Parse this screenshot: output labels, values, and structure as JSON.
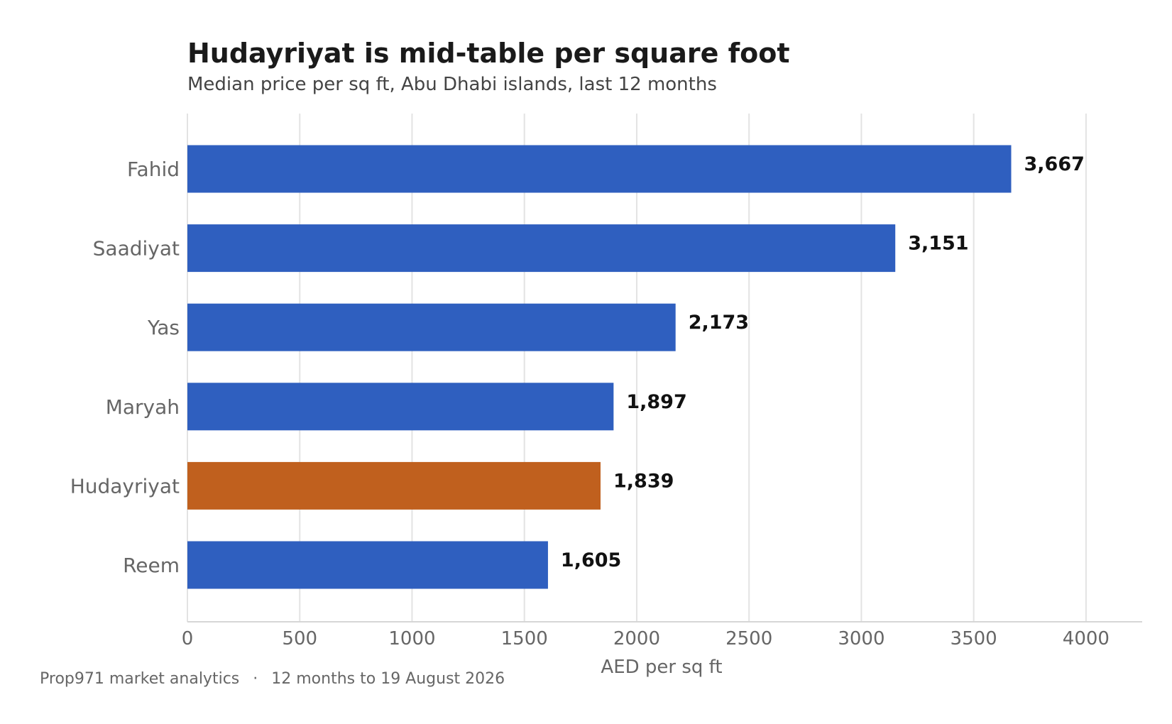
{
  "chart_data": {
    "type": "bar",
    "orientation": "horizontal",
    "title": "Hudayriyat is mid-table per square foot",
    "subtitle": "Median price per sq ft, Abu Dhabi islands, last 12 months",
    "xlabel": "AED per sq ft",
    "ylabel": "",
    "categories": [
      "Fahid",
      "Saadiyat",
      "Yas",
      "Maryah",
      "Hudayriyat",
      "Reem"
    ],
    "values": [
      3667,
      3151,
      2173,
      1897,
      1839,
      1605
    ],
    "value_labels": [
      "3,667",
      "3,151",
      "2,173",
      "1,897",
      "1,839",
      "1,605"
    ],
    "highlight": "Hudayriyat",
    "xlim": [
      0,
      4250
    ],
    "xticks": [
      0,
      500,
      1000,
      1500,
      2000,
      2500,
      3000,
      3500,
      4000
    ],
    "grid": "vertical",
    "legend": "none",
    "colors": {
      "bar": "#2f5fbf",
      "highlight": "#c0601e",
      "grid": "#e3e3e3",
      "axis": "#d6d6d6"
    }
  },
  "footer": {
    "source": "Prop971 market analytics",
    "separator": "·",
    "period": "12 months to 19 August 2026"
  }
}
